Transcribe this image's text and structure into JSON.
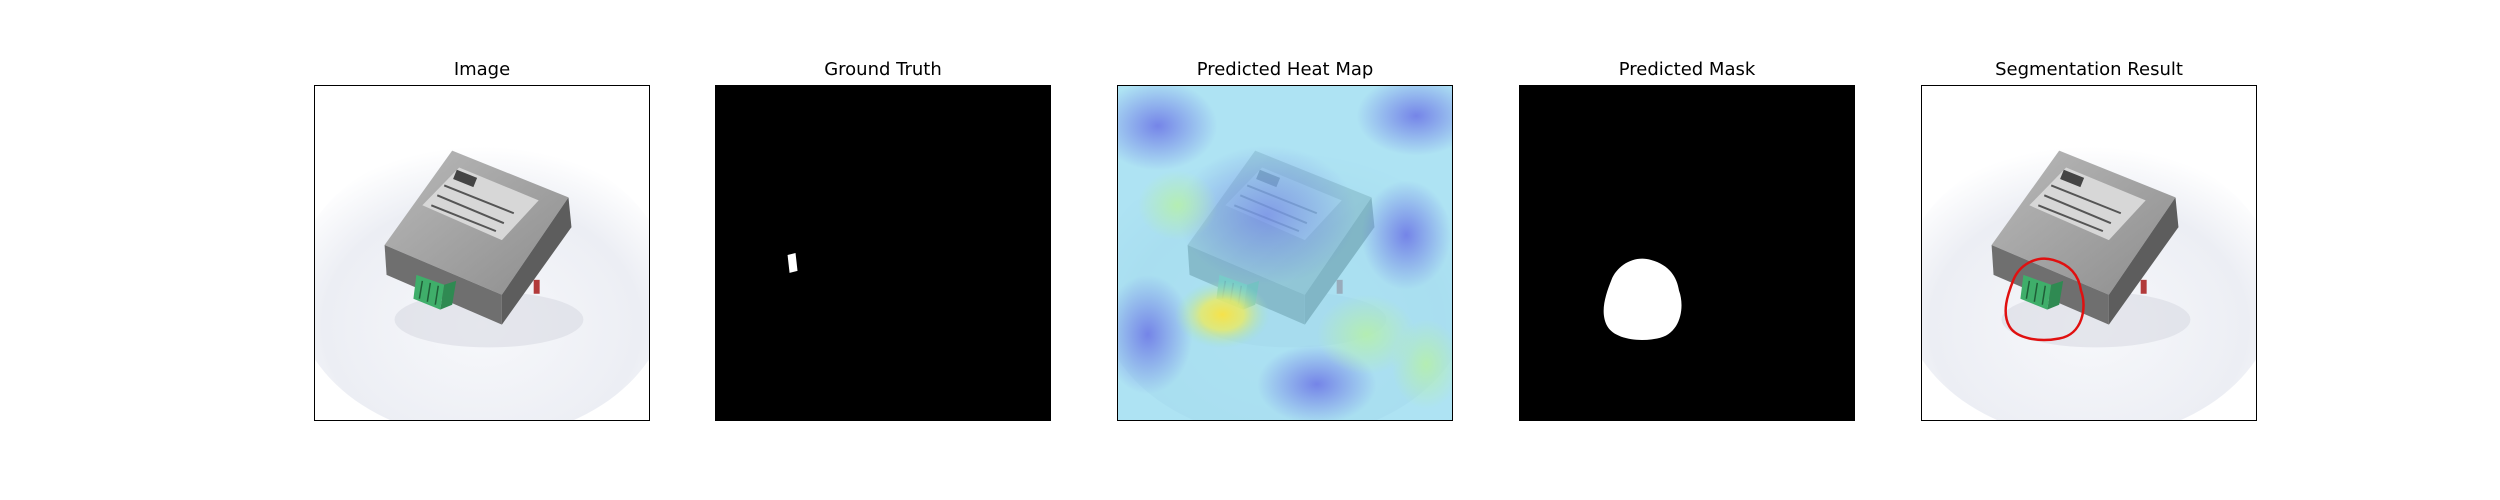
{
  "figure": {
    "panels": [
      {
        "id": "image",
        "title": "Image",
        "icon": "device-photo-icon"
      },
      {
        "id": "ground-truth",
        "title": "Ground Truth",
        "icon": "mask-icon"
      },
      {
        "id": "heatmap",
        "title": "Predicted Heat Map",
        "icon": "heatmap-icon"
      },
      {
        "id": "pred-mask",
        "title": "Predicted Mask",
        "icon": "mask-icon"
      },
      {
        "id": "segmentation",
        "title": "Segmentation Result",
        "icon": "contour-icon"
      }
    ]
  },
  "colors": {
    "mask_background": "#000000",
    "mask_foreground": "#ffffff",
    "contour": "#e01010",
    "connector_green": "#3fae6a",
    "device_gray": "#8e8e8e"
  }
}
